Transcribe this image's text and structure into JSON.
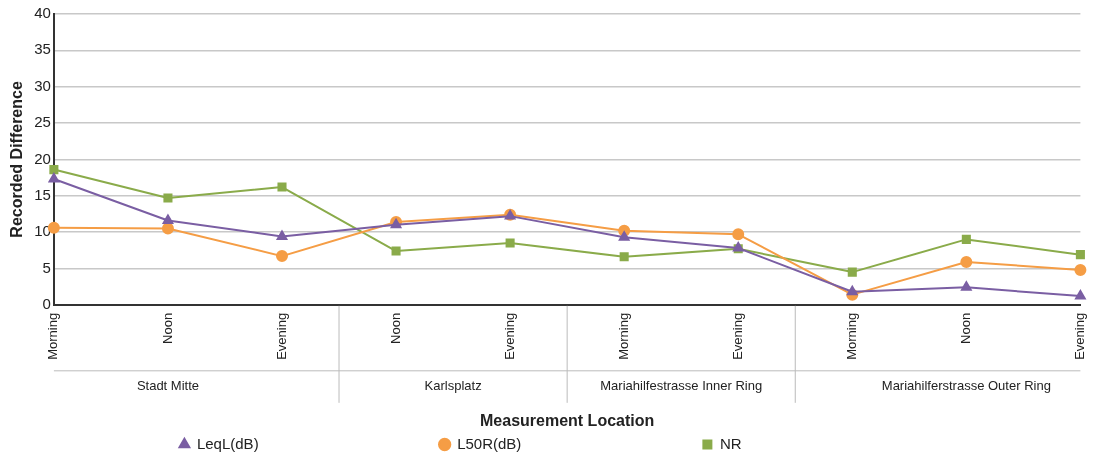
{
  "chart_data": {
    "type": "line",
    "xlabel": "Measurement Location",
    "ylabel": "Recorded Difference",
    "categories": [
      "Morning",
      "Noon",
      "Evening",
      "Noon",
      "Evening",
      "Morning",
      "Evening",
      "Morning",
      "Noon",
      "Evening"
    ],
    "annotations": [
      "Stadt Mitte",
      "Karlsplatz",
      "Mariahilfestrasse Inner Ring",
      "Mariahilferstrasse Outer Ring"
    ],
    "series": [
      {
        "name": "LeqL(dB)",
        "color": "#7a5ea3",
        "marker": "triangle",
        "values": [
          17.3,
          11.6,
          9.4,
          11.0,
          12.2,
          9.3,
          7.8,
          1.8,
          2.4,
          1.2
        ]
      },
      {
        "name": "L50R(dB)",
        "color": "#f59d45",
        "marker": "circle",
        "values": [
          10.6,
          10.5,
          6.7,
          11.4,
          12.4,
          10.2,
          9.7,
          1.4,
          5.9,
          4.8
        ]
      },
      {
        "name": "NR",
        "color": "#8aab4a",
        "marker": "square",
        "values": [
          18.6,
          14.7,
          16.2,
          7.4,
          8.5,
          6.6,
          7.7,
          4.5,
          9.0,
          6.9
        ]
      }
    ],
    "ylim": [
      0,
      40
    ],
    "yticks": [
      0,
      5,
      10,
      15,
      20,
      25,
      30,
      35,
      40
    ],
    "grid": "y",
    "legend": "bottom",
    "line_style": "solid"
  }
}
